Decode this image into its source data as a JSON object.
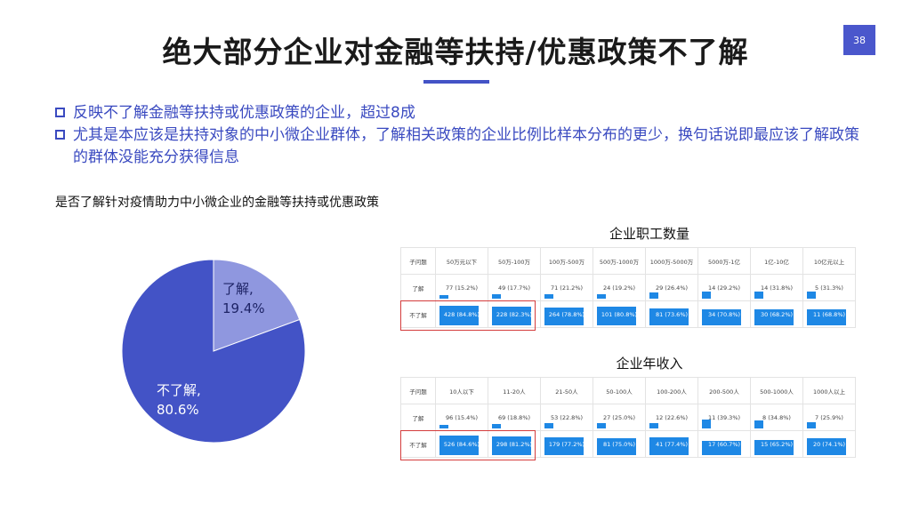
{
  "slide": {
    "title": "绝大部分企业对金融等扶持/优惠政策不了解",
    "page_number": "38",
    "accent_color": "#4353c6"
  },
  "bullets": [
    "反映不了解金融等扶持或优惠政策的企业，超过8成",
    "尤其是本应该是扶持对象的中小微企业群体，了解相关政策的企业比例比样本分布的更少，换句话说即最应该了解政策的群体没能充分获得信息"
  ],
  "question": "是否了解针对疫情助力中小微企业的金融等扶持或优惠政策",
  "pie": {
    "colors": {
      "know": "#8f97df",
      "not_know": "#4353c6"
    },
    "slices": [
      {
        "label": "了解,",
        "pct_text": "19.4%",
        "value": 19.4
      },
      {
        "label": "不了解,",
        "pct_text": "80.6%",
        "value": 80.6
      }
    ]
  },
  "table1": {
    "title": "企业职工数量",
    "corner": "子问题",
    "headers": [
      "50万元以下",
      "50万-100万",
      "100万-500万",
      "500万-1000万",
      "1000万-5000万",
      "5000万-1亿",
      "1亿-10亿",
      "10亿元以上"
    ],
    "rows": [
      {
        "label": "了解",
        "cells": [
          "77 (15.2%)",
          "49 (17.7%)",
          "71 (21.2%)",
          "24 (19.2%)",
          "29 (26.4%)",
          "14 (29.2%)",
          "14 (31.8%)",
          "5 (31.3%)"
        ],
        "fractions": [
          0.152,
          0.177,
          0.212,
          0.192,
          0.264,
          0.292,
          0.318,
          0.313
        ]
      },
      {
        "label": "不了解",
        "cells": [
          "428 (84.8%)",
          "228 (82.3%)",
          "264 (78.8%)",
          "101 (80.8%)",
          "81 (73.6%)",
          "34 (70.8%)",
          "30 (68.2%)",
          "11 (68.8%)"
        ],
        "fractions": [
          0.848,
          0.823,
          0.788,
          0.808,
          0.736,
          0.708,
          0.682,
          0.688
        ]
      }
    ]
  },
  "table2": {
    "title": "企业年收入",
    "corner": "子问题",
    "headers": [
      "10人以下",
      "11-20人",
      "21-50人",
      "50-100人",
      "100-200人",
      "200-500人",
      "500-1000人",
      "1000人以上"
    ],
    "rows": [
      {
        "label": "了解",
        "cells": [
          "96 (15.4%)",
          "69 (18.8%)",
          "53 (22.8%)",
          "27 (25.0%)",
          "12 (22.6%)",
          "11 (39.3%)",
          "8 (34.8%)",
          "7 (25.9%)"
        ],
        "fractions": [
          0.154,
          0.188,
          0.228,
          0.25,
          0.226,
          0.393,
          0.348,
          0.259
        ]
      },
      {
        "label": "不了解",
        "cells": [
          "526 (84.6%)",
          "298 (81.2%)",
          "179 (77.2%)",
          "81 (75.0%)",
          "41 (77.4%)",
          "17 (60.7%)",
          "15 (65.2%)",
          "20 (74.1%)"
        ],
        "fractions": [
          0.846,
          0.812,
          0.772,
          0.75,
          0.774,
          0.607,
          0.652,
          0.741
        ]
      }
    ]
  },
  "bar_color": "#1e88e5",
  "highlight_color": "#d43c3c"
}
